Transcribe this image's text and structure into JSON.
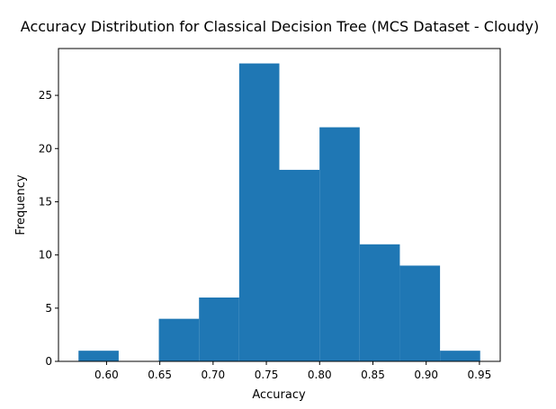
{
  "chart_data": {
    "type": "bar",
    "title": "Accuracy Distribution for Classical Decision Tree (MCS Dataset - Cloudy)",
    "xlabel": "Accuracy",
    "ylabel": "Frequency",
    "bin_edges": [
      0.5737,
      0.6114,
      0.6491,
      0.6868,
      0.7245,
      0.7622,
      0.7999,
      0.8376,
      0.8753,
      0.913,
      0.9507
    ],
    "values": [
      1,
      0,
      4,
      6,
      28,
      18,
      22,
      11,
      9,
      1
    ],
    "xlim": [
      0.5549,
      0.9695
    ],
    "ylim": [
      0,
      29.4
    ],
    "xticks": [
      "0.60",
      "0.65",
      "0.70",
      "0.75",
      "0.80",
      "0.85",
      "0.90",
      "0.95"
    ],
    "yticks": [
      "0",
      "5",
      "10",
      "15",
      "20",
      "25"
    ],
    "bar_color": "#1f77b4",
    "grid": false
  }
}
